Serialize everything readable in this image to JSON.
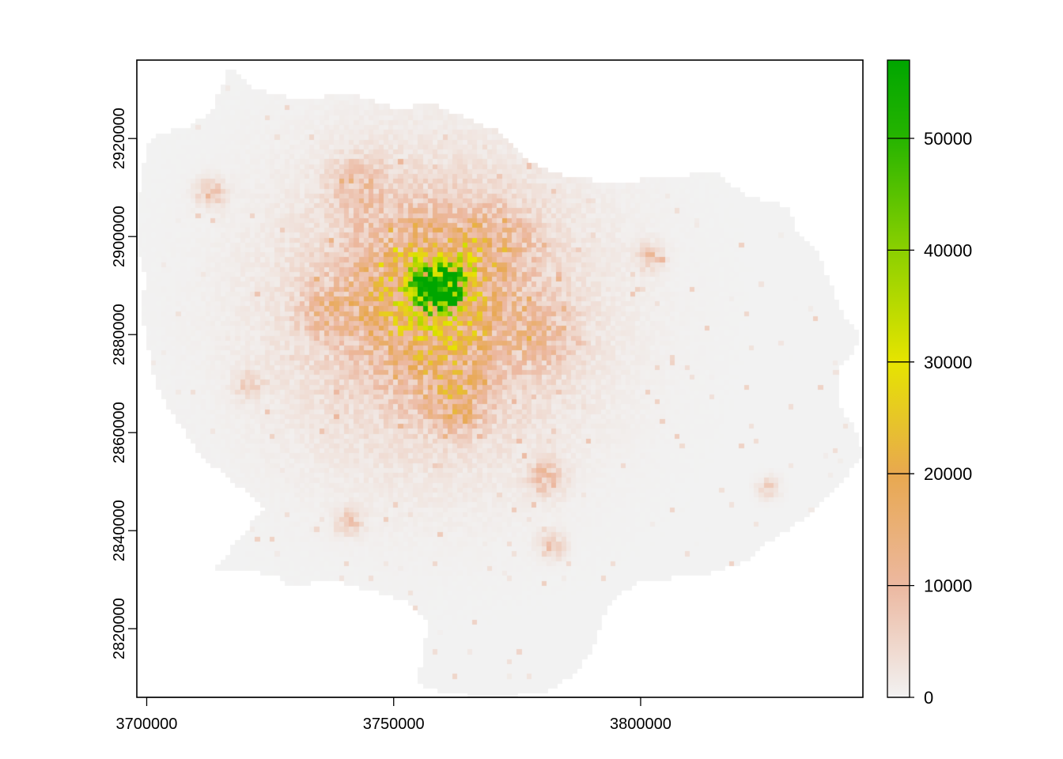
{
  "chart_data": {
    "type": "heatmap",
    "title": "",
    "xlabel": "",
    "ylabel": "",
    "x_ticks": [
      3700000,
      3750000,
      3800000
    ],
    "x_tick_labels": [
      "3700000",
      "3750000",
      "3800000"
    ],
    "y_ticks": [
      2820000,
      2840000,
      2860000,
      2880000,
      2900000,
      2920000
    ],
    "y_tick_labels": [
      "2820000",
      "2840000",
      "2860000",
      "2880000",
      "2900000",
      "2920000"
    ],
    "xlim": [
      3698000,
      3845000
    ],
    "ylim": [
      2806000,
      2936000
    ],
    "legend": {
      "placement": "right",
      "min": 0,
      "max": 57000,
      "ticks": [
        0,
        10000,
        20000,
        30000,
        40000,
        50000
      ],
      "tick_labels": [
        "0",
        "10000",
        "20000",
        "30000",
        "40000",
        "50000"
      ],
      "color_stops": [
        {
          "value": 0,
          "color": "#f2f2f2"
        },
        {
          "value": 10000,
          "color": "#ecb8a0"
        },
        {
          "value": 20000,
          "color": "#e8a84f"
        },
        {
          "value": 30000,
          "color": "#e6e400"
        },
        {
          "value": 40000,
          "color": "#8bd000"
        },
        {
          "value": 50000,
          "color": "#26b400"
        },
        {
          "value": 57000,
          "color": "#00a600"
        }
      ]
    },
    "region_outline": [
      [
        3717000,
        2935000
      ],
      [
        3720000,
        2932000
      ],
      [
        3722000,
        2930000
      ],
      [
        3730000,
        2928000
      ],
      [
        3742000,
        2929000
      ],
      [
        3750000,
        2926000
      ],
      [
        3758000,
        2927000
      ],
      [
        3765000,
        2924000
      ],
      [
        3772000,
        2921000
      ],
      [
        3778000,
        2915000
      ],
      [
        3785000,
        2912000
      ],
      [
        3795000,
        2911000
      ],
      [
        3805000,
        2912000
      ],
      [
        3815000,
        2913000
      ],
      [
        3822000,
        2908000
      ],
      [
        3830000,
        2906000
      ],
      [
        3832000,
        2900000
      ],
      [
        3836000,
        2897000
      ],
      [
        3838000,
        2891000
      ],
      [
        3841000,
        2884000
      ],
      [
        3844000,
        2880000
      ],
      [
        3843000,
        2876000
      ],
      [
        3840000,
        2873000
      ],
      [
        3840000,
        2866000
      ],
      [
        3843000,
        2861000
      ],
      [
        3845000,
        2856000
      ],
      [
        3842000,
        2852000
      ],
      [
        3838000,
        2847000
      ],
      [
        3832000,
        2842000
      ],
      [
        3826000,
        2838000
      ],
      [
        3822000,
        2834000
      ],
      [
        3812000,
        2831000
      ],
      [
        3800000,
        2830000
      ],
      [
        3793000,
        2825000
      ],
      [
        3791000,
        2818000
      ],
      [
        3787000,
        2811000
      ],
      [
        3780000,
        2807000
      ],
      [
        3770000,
        2806000
      ],
      [
        3760000,
        2807000
      ],
      [
        3755000,
        2809000
      ],
      [
        3756000,
        2814000
      ],
      [
        3757000,
        2822000
      ],
      [
        3752000,
        2826000
      ],
      [
        3745000,
        2828000
      ],
      [
        3738000,
        2830000
      ],
      [
        3729000,
        2829000
      ],
      [
        3727000,
        2831000
      ],
      [
        3720000,
        2832000
      ],
      [
        3714000,
        2832000
      ],
      [
        3724000,
        2845000
      ],
      [
        3714000,
        2853000
      ],
      [
        3710000,
        2857000
      ],
      [
        3706000,
        2863000
      ],
      [
        3703000,
        2868000
      ],
      [
        3701000,
        2874000
      ],
      [
        3700000,
        2880000
      ],
      [
        3699000,
        2885000
      ],
      [
        3700000,
        2892000
      ],
      [
        3698000,
        2898000
      ],
      [
        3698000,
        2905000
      ],
      [
        3699000,
        2912000
      ],
      [
        3700000,
        2918000
      ],
      [
        3703000,
        2921000
      ],
      [
        3708000,
        2922000
      ],
      [
        3713000,
        2925000
      ],
      [
        3715000,
        2930000
      ]
    ],
    "hotspots": [
      {
        "x": 3759500,
        "y": 2890500,
        "peak": 56000,
        "spread": 3200
      },
      {
        "x": 3757000,
        "y": 2889000,
        "peak": 20000,
        "spread": 9000
      },
      {
        "x": 3758000,
        "y": 2885000,
        "peak": 9000,
        "spread": 20000
      },
      {
        "x": 3761000,
        "y": 2872000,
        "peak": 7000,
        "spread": 5500
      },
      {
        "x": 3763000,
        "y": 2865000,
        "peak": 8000,
        "spread": 3500
      },
      {
        "x": 3781000,
        "y": 2851000,
        "peak": 9000,
        "spread": 2500
      },
      {
        "x": 3743000,
        "y": 2911000,
        "peak": 7000,
        "spread": 4000
      },
      {
        "x": 3713000,
        "y": 2909000,
        "peak": 8000,
        "spread": 2000
      },
      {
        "x": 3802000,
        "y": 2896000,
        "peak": 8000,
        "spread": 1800
      },
      {
        "x": 3736000,
        "y": 2885000,
        "peak": 7000,
        "spread": 3500
      },
      {
        "x": 3741000,
        "y": 2842000,
        "peak": 8000,
        "spread": 1800
      },
      {
        "x": 3782000,
        "y": 2837000,
        "peak": 8000,
        "spread": 1800
      },
      {
        "x": 3721000,
        "y": 2870000,
        "peak": 6000,
        "spread": 2000
      },
      {
        "x": 3826000,
        "y": 2849000,
        "peak": 6000,
        "spread": 1500
      },
      {
        "x": 3780000,
        "y": 2880000,
        "peak": 6000,
        "spread": 5000
      },
      {
        "x": 3771000,
        "y": 2899000,
        "peak": 7000,
        "spread": 5000
      }
    ]
  }
}
